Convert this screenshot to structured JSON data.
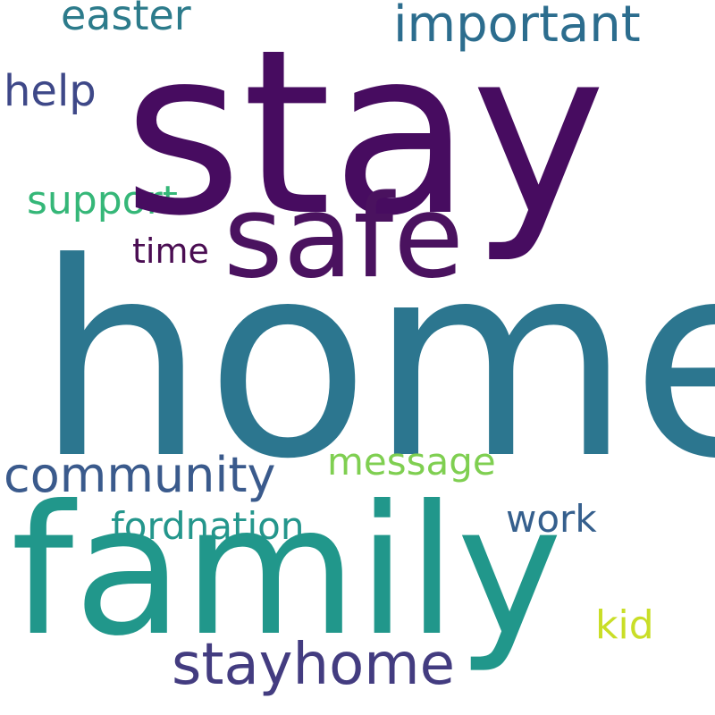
{
  "cloud": {
    "background": "#ffffff",
    "words": {
      "stay": {
        "text": "stay",
        "color": "#470c60"
      },
      "home": {
        "text": "home",
        "color": "#2c768f"
      },
      "safe": {
        "text": "safe",
        "color": "#4a125f"
      },
      "family": {
        "text": "family",
        "color": "#21978b"
      },
      "important": {
        "text": "important",
        "color": "#2c6d8e"
      },
      "easter": {
        "text": "easter",
        "color": "#2c7b8b"
      },
      "help": {
        "text": "help",
        "color": "#3e4888"
      },
      "support": {
        "text": "support",
        "color": "#35b778"
      },
      "time": {
        "text": "time",
        "color": "#4a0d52"
      },
      "community": {
        "text": "community",
        "color": "#3a5a8c"
      },
      "message": {
        "text": "message",
        "color": "#7fcf51"
      },
      "fordnation": {
        "text": "fordnation",
        "color": "#24968c"
      },
      "work": {
        "text": "work",
        "color": "#355f8d"
      },
      "stayhome": {
        "text": "stayhome",
        "color": "#433c80"
      },
      "kid": {
        "text": "kid",
        "color": "#c9de27"
      }
    }
  }
}
